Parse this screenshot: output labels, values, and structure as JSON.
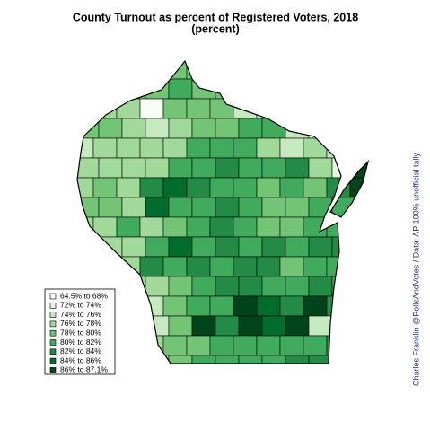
{
  "title": "County Turnout as percent of Registered Voters, 2018",
  "subtitle": "(percent)",
  "legend": {
    "items": [
      {
        "label": "64.5% to 68%",
        "color": "#f7fcf5"
      },
      {
        "label": "72% to 74%",
        "color": "#e5f5e0"
      },
      {
        "label": "74% to 76%",
        "color": "#c7e9c0"
      },
      {
        "label": "76% to 78%",
        "color": "#a1d99b"
      },
      {
        "label": "78% to 80%",
        "color": "#74c476"
      },
      {
        "label": "80% to 82%",
        "color": "#41ab5d"
      },
      {
        "label": "82% to 84%",
        "color": "#238b45"
      },
      {
        "label": "84% to 86%",
        "color": "#006d2c"
      },
      {
        "label": "86% to 87.1%",
        "color": "#00441b"
      }
    ]
  },
  "caption": "Charles Franklin  @PollsAndVotes / Data: AP 100% unofficial tally"
}
